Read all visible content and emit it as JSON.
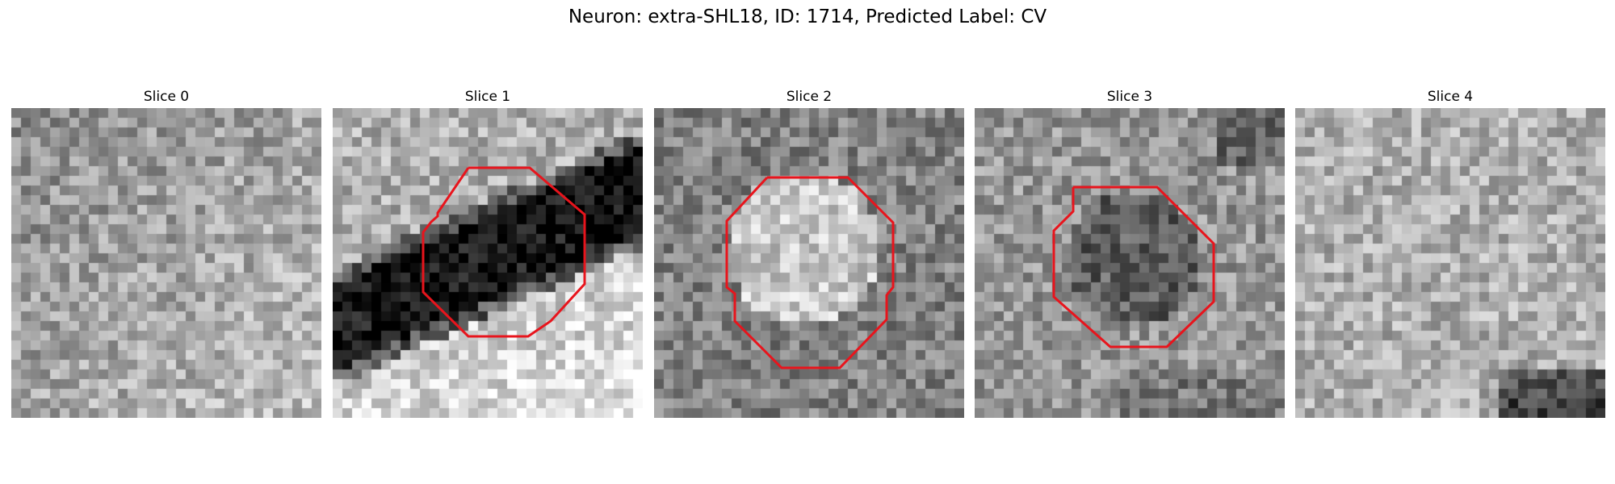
{
  "figure": {
    "title": "Neuron: extra-SHL18, ID: 1714, Predicted Label: CV"
  },
  "panels": [
    {
      "title": "Slice 0",
      "has_contour": false
    },
    {
      "title": "Slice 1",
      "has_contour": true
    },
    {
      "title": "Slice 2",
      "has_contour": true
    },
    {
      "title": "Slice 3",
      "has_contour": true
    },
    {
      "title": "Slice 4",
      "has_contour": false
    }
  ],
  "colors": {
    "contour": "#e8141c",
    "background": "#ffffff"
  }
}
